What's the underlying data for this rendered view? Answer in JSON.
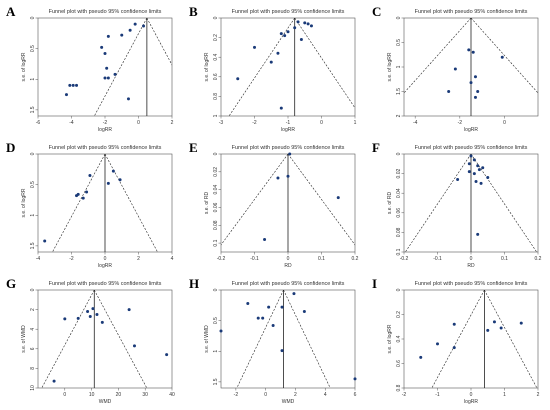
{
  "figure": {
    "panels": [
      {
        "letter": "A",
        "title": "Funnel plot with pseudo 95% confidence limits",
        "xlabel": "logRR",
        "ylabel": "s.e. of logRR",
        "xlim": [
          -6,
          2
        ],
        "ylim": [
          0,
          1.6
        ],
        "xticks": [
          -6,
          -4,
          -2,
          0,
          2
        ],
        "yticks": [
          0,
          0.5,
          1,
          1.5
        ],
        "center": 0.5
      },
      {
        "letter": "B",
        "title": "Funnel plot with pseudo 95% confidence limits",
        "xlabel": "logRR",
        "ylabel": "s.e. of logRR",
        "xlim": [
          -3,
          1
        ],
        "ylim": [
          0,
          1.0
        ],
        "xticks": [
          -3,
          -2,
          -1,
          0,
          1
        ],
        "yticks": [
          0,
          0.2,
          0.4,
          0.6,
          0.8,
          1
        ],
        "center": -0.8
      },
      {
        "letter": "C",
        "title": "Funnel plot with pseudo 95% confidence limits",
        "xlabel": "logRR",
        "ylabel": "s.e. of logRR",
        "xlim": [
          -4.5,
          1.5
        ],
        "ylim": [
          0,
          2.0
        ],
        "xticks": [
          -4,
          -2,
          0
        ],
        "yticks": [
          0,
          0.5,
          1,
          1.5,
          2
        ],
        "center": -1.5
      },
      {
        "letter": "D",
        "title": "Funnel plot with pseudo 95% confidence limits",
        "xlabel": "logRR",
        "ylabel": "s.e. of logRR",
        "xlim": [
          -4,
          4
        ],
        "ylim": [
          0,
          1.6
        ],
        "xticks": [
          -4,
          -2,
          0,
          2,
          4
        ],
        "yticks": [
          0,
          0.5,
          1,
          1.5
        ],
        "center": 0.0
      },
      {
        "letter": "E",
        "title": "Funnel plot with pseudo 95% confidence limits",
        "xlabel": "RD",
        "ylabel": "s.e. of RD",
        "xlim": [
          -0.2,
          0.2
        ],
        "ylim": [
          0,
          0.11
        ],
        "xticks": [
          -0.2,
          -0.1,
          0,
          0.1,
          0.2
        ],
        "yticks": [
          0,
          0.02,
          0.04,
          0.06,
          0.08,
          0.1
        ],
        "center": 0.0
      },
      {
        "letter": "F",
        "title": "Funnel plot with pseudo 95% confidence limits",
        "xlabel": "RD",
        "ylabel": "s.e. of RD",
        "xlim": [
          -0.2,
          0.2
        ],
        "ylim": [
          0,
          0.1
        ],
        "xticks": [
          -0.2,
          -0.1,
          0,
          0.1,
          0.2
        ],
        "yticks": [
          0,
          0.02,
          0.04,
          0.06,
          0.08,
          0.1
        ],
        "center": 0.0
      },
      {
        "letter": "G",
        "title": "Funnel plot with pseudo 95% confidence limits",
        "xlabel": "WMD",
        "ylabel": "s.e. of WMD",
        "xlim": [
          -10,
          40
        ],
        "ylim": [
          0,
          10
        ],
        "xticks": [
          0,
          10,
          20,
          30,
          40
        ],
        "yticks": [
          0,
          2,
          4,
          6,
          8,
          10
        ],
        "center": 11.0
      },
      {
        "letter": "H",
        "title": "Funnel plot with pseudo 95% confidence limits",
        "xlabel": "WMD",
        "ylabel": "s.e. of WMD",
        "xlim": [
          -3,
          6
        ],
        "ylim": [
          0,
          1.6
        ],
        "xticks": [
          -2,
          0,
          2,
          4,
          6
        ],
        "yticks": [
          0,
          0.5,
          1,
          1.5
        ],
        "center": 1.2
      },
      {
        "letter": "I",
        "title": "Funnel plot with pseudo 95% confidence limits",
        "xlabel": "logRR",
        "ylabel": "s.e. of logRR",
        "xlim": [
          -2,
          2
        ],
        "ylim": [
          0,
          0.8
        ],
        "xticks": [
          -2,
          -1,
          0,
          1,
          2
        ],
        "yticks": [
          0,
          0.2,
          0.4,
          0.6,
          0.8
        ],
        "center": 0.4
      }
    ]
  },
  "chart_data": [
    {
      "type": "scatter",
      "panel": "A",
      "x": [
        -0.2,
        0.3,
        -0.5,
        -1.0,
        -1.8,
        -2.2,
        -2.0,
        -1.9,
        -1.4,
        -1.8,
        -2.0,
        -3.7,
        -3.9,
        -4.1,
        -4.3,
        -0.6
      ],
      "y": [
        0.1,
        0.13,
        0.2,
        0.28,
        0.3,
        0.48,
        0.58,
        0.82,
        0.92,
        0.98,
        0.98,
        1.1,
        1.1,
        1.1,
        1.25,
        1.32
      ]
    },
    {
      "type": "scatter",
      "panel": "B",
      "x": [
        -0.7,
        -0.5,
        -0.4,
        -0.3,
        -0.8,
        -1.0,
        -1.2,
        -1.1,
        -0.6,
        -2.0,
        -1.3,
        -1.5,
        -2.5,
        -1.2
      ],
      "y": [
        0.04,
        0.05,
        0.06,
        0.08,
        0.1,
        0.14,
        0.16,
        0.18,
        0.22,
        0.3,
        0.36,
        0.45,
        0.62,
        0.92
      ]
    },
    {
      "type": "scatter",
      "panel": "C",
      "x": [
        -1.6,
        -1.4,
        -0.1,
        -2.2,
        -1.3,
        -1.5,
        -2.5,
        -1.2,
        -1.3
      ],
      "y": [
        0.65,
        0.7,
        0.8,
        1.04,
        1.2,
        1.32,
        1.5,
        1.5,
        1.62
      ]
    },
    {
      "type": "scatter",
      "panel": "D",
      "x": [
        0.5,
        -0.9,
        0.9,
        0.2,
        -1.1,
        -1.6,
        -1.7,
        -1.3,
        -3.6
      ],
      "y": [
        0.28,
        0.35,
        0.42,
        0.48,
        0.62,
        0.66,
        0.68,
        0.72,
        1.42
      ]
    },
    {
      "type": "scatter",
      "panel": "E",
      "x": [
        0.005,
        0.0,
        -0.03,
        0.15,
        -0.07
      ],
      "y": [
        0.0,
        0.025,
        0.027,
        0.049,
        0.096
      ]
    },
    {
      "type": "scatter",
      "panel": "F",
      "x": [
        0.0,
        0.01,
        -0.005,
        0.02,
        0.035,
        0.025,
        -0.005,
        0.01,
        0.05,
        -0.04,
        0.015,
        0.03,
        0.02
      ],
      "y": [
        0.002,
        0.006,
        0.01,
        0.012,
        0.014,
        0.016,
        0.018,
        0.02,
        0.024,
        0.026,
        0.028,
        0.03,
        0.082
      ]
    },
    {
      "type": "scatter",
      "panel": "G",
      "x": [
        10.5,
        8.5,
        12,
        9.5,
        5,
        0,
        24,
        14,
        26,
        38,
        -4
      ],
      "y": [
        1.9,
        2.2,
        2.5,
        2.7,
        2.9,
        2.95,
        2.0,
        3.3,
        5.7,
        6.6,
        9.3
      ]
    },
    {
      "type": "scatter",
      "panel": "H",
      "x": [
        1.9,
        -1.2,
        0.2,
        1.1,
        2.6,
        -0.2,
        -0.5,
        0.5,
        -3.0,
        1.1,
        6.0
      ],
      "y": [
        0.06,
        0.22,
        0.28,
        0.28,
        0.35,
        0.46,
        0.46,
        0.58,
        0.67,
        0.99,
        1.45
      ]
    },
    {
      "type": "scatter",
      "panel": "I",
      "x": [
        0.7,
        1.5,
        -0.5,
        0.9,
        0.5,
        -1.0,
        -0.5,
        -1.5
      ],
      "y": [
        0.26,
        0.27,
        0.28,
        0.31,
        0.33,
        0.44,
        0.47,
        0.55
      ]
    }
  ]
}
